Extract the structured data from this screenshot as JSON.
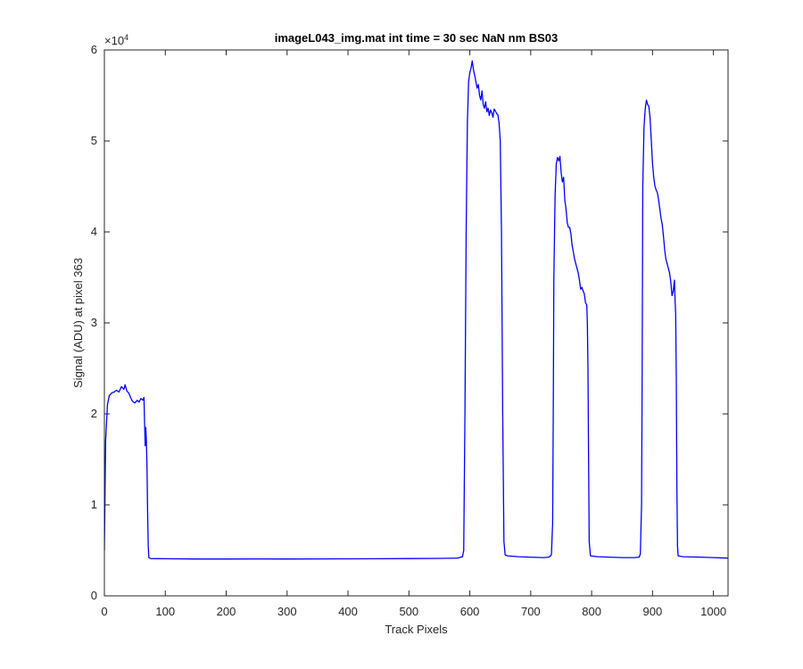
{
  "chart_data": {
    "type": "line",
    "title": "imageL043_img.mat int time = 30 sec  NaN nm BS03",
    "xlabel": "Track Pixels",
    "ylabel": "Signal (ADU) at pixel 363",
    "xlim": [
      0,
      1024
    ],
    "ylim": [
      0,
      60000
    ],
    "x_ticks": [
      0,
      100,
      200,
      300,
      400,
      500,
      600,
      700,
      800,
      900,
      1000
    ],
    "y_ticks": [
      0,
      1,
      2,
      3,
      4,
      5,
      6
    ],
    "y_exponent_label": "×10",
    "y_exponent_power": "4",
    "grid": false,
    "series": [
      {
        "color": "#0000ff",
        "points": [
          [
            0,
            5000
          ],
          [
            2,
            17000
          ],
          [
            5,
            21000
          ],
          [
            8,
            22000
          ],
          [
            12,
            22300
          ],
          [
            16,
            22400
          ],
          [
            20,
            22600
          ],
          [
            24,
            22400
          ],
          [
            28,
            23000
          ],
          [
            32,
            22700
          ],
          [
            34,
            23200
          ],
          [
            37,
            22500
          ],
          [
            40,
            22300
          ],
          [
            43,
            21800
          ],
          [
            46,
            21400
          ],
          [
            50,
            21200
          ],
          [
            54,
            21500
          ],
          [
            57,
            21300
          ],
          [
            60,
            21700
          ],
          [
            63,
            21500
          ],
          [
            65,
            21800
          ],
          [
            66,
            19000
          ],
          [
            67,
            16500
          ],
          [
            68,
            18500
          ],
          [
            69,
            17000
          ],
          [
            70,
            14000
          ],
          [
            71,
            9000
          ],
          [
            72,
            5500
          ],
          [
            73,
            4200
          ],
          [
            76,
            4100
          ],
          [
            100,
            4080
          ],
          [
            150,
            4050
          ],
          [
            200,
            4050
          ],
          [
            250,
            4060
          ],
          [
            300,
            4050
          ],
          [
            350,
            4060
          ],
          [
            400,
            4070
          ],
          [
            450,
            4080
          ],
          [
            500,
            4100
          ],
          [
            550,
            4120
          ],
          [
            580,
            4150
          ],
          [
            588,
            4300
          ],
          [
            590,
            5000
          ],
          [
            592,
            20000
          ],
          [
            594,
            40000
          ],
          [
            596,
            52000
          ],
          [
            598,
            56500
          ],
          [
            600,
            57500
          ],
          [
            602,
            58000
          ],
          [
            604,
            58800
          ],
          [
            606,
            57800
          ],
          [
            608,
            57200
          ],
          [
            610,
            56500
          ],
          [
            612,
            55800
          ],
          [
            614,
            56200
          ],
          [
            616,
            55000
          ],
          [
            618,
            54500
          ],
          [
            620,
            55500
          ],
          [
            622,
            54000
          ],
          [
            624,
            53600
          ],
          [
            626,
            54300
          ],
          [
            628,
            53200
          ],
          [
            630,
            53600
          ],
          [
            632,
            52800
          ],
          [
            634,
            53400
          ],
          [
            636,
            53100
          ],
          [
            638,
            52600
          ],
          [
            640,
            53500
          ],
          [
            642,
            53300
          ],
          [
            644,
            53000
          ],
          [
            646,
            52900
          ],
          [
            648,
            52000
          ],
          [
            650,
            50000
          ],
          [
            652,
            40000
          ],
          [
            654,
            20000
          ],
          [
            656,
            6000
          ],
          [
            658,
            4500
          ],
          [
            662,
            4400
          ],
          [
            680,
            4300
          ],
          [
            700,
            4250
          ],
          [
            720,
            4200
          ],
          [
            730,
            4250
          ],
          [
            734,
            4500
          ],
          [
            736,
            8000
          ],
          [
            737,
            20000
          ],
          [
            738,
            35000
          ],
          [
            740,
            44000
          ],
          [
            742,
            47500
          ],
          [
            744,
            48200
          ],
          [
            746,
            47800
          ],
          [
            748,
            48300
          ],
          [
            750,
            46500
          ],
          [
            752,
            45500
          ],
          [
            754,
            46000
          ],
          [
            756,
            43500
          ],
          [
            758,
            42500
          ],
          [
            760,
            41000
          ],
          [
            762,
            40500
          ],
          [
            764,
            40500
          ],
          [
            766,
            39800
          ],
          [
            768,
            38500
          ],
          [
            770,
            37800
          ],
          [
            772,
            37000
          ],
          [
            774,
            36500
          ],
          [
            776,
            36000
          ],
          [
            778,
            35500
          ],
          [
            780,
            34700
          ],
          [
            782,
            33700
          ],
          [
            784,
            33900
          ],
          [
            786,
            33500
          ],
          [
            788,
            33200
          ],
          [
            790,
            32200
          ],
          [
            792,
            32000
          ],
          [
            793,
            30000
          ],
          [
            794,
            25000
          ],
          [
            795,
            15000
          ],
          [
            796,
            6000
          ],
          [
            798,
            4400
          ],
          [
            810,
            4300
          ],
          [
            830,
            4250
          ],
          [
            850,
            4200
          ],
          [
            870,
            4200
          ],
          [
            878,
            4250
          ],
          [
            880,
            4600
          ],
          [
            882,
            10000
          ],
          [
            883,
            25000
          ],
          [
            884,
            45000
          ],
          [
            886,
            51500
          ],
          [
            888,
            53500
          ],
          [
            890,
            54500
          ],
          [
            892,
            54000
          ],
          [
            894,
            53800
          ],
          [
            896,
            52500
          ],
          [
            898,
            50000
          ],
          [
            900,
            47500
          ],
          [
            902,
            46000
          ],
          [
            904,
            45000
          ],
          [
            906,
            44600
          ],
          [
            908,
            44300
          ],
          [
            910,
            43500
          ],
          [
            912,
            42500
          ],
          [
            914,
            41500
          ],
          [
            916,
            40800
          ],
          [
            918,
            39500
          ],
          [
            920,
            38000
          ],
          [
            922,
            37000
          ],
          [
            924,
            36500
          ],
          [
            926,
            36000
          ],
          [
            928,
            35500
          ],
          [
            930,
            34500
          ],
          [
            932,
            33000
          ],
          [
            934,
            33500
          ],
          [
            936,
            34700
          ],
          [
            937,
            32500
          ],
          [
            938,
            31000
          ],
          [
            939,
            24000
          ],
          [
            940,
            12000
          ],
          [
            941,
            5500
          ],
          [
            942,
            4400
          ],
          [
            950,
            4300
          ],
          [
            980,
            4250
          ],
          [
            1000,
            4200
          ],
          [
            1024,
            4150
          ]
        ]
      }
    ]
  }
}
